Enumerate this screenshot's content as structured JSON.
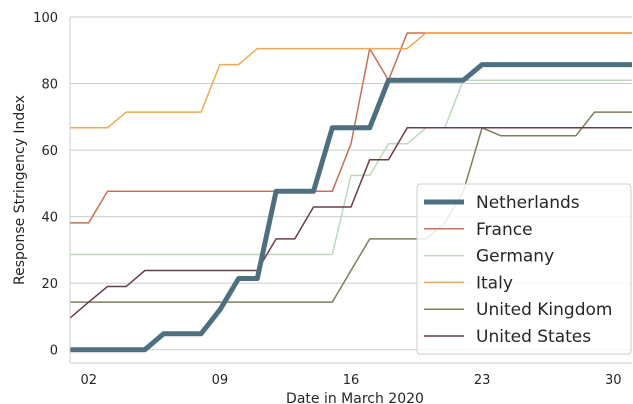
{
  "chart_data": {
    "type": "line",
    "xlabel": "Date in March 2020",
    "ylabel": "Response Stringency Index",
    "xlim": [
      1,
      31
    ],
    "ylim": [
      -4,
      100
    ],
    "xticks": [
      2,
      9,
      16,
      23,
      30
    ],
    "xtick_labels": [
      "02",
      "09",
      "16",
      "23",
      "30"
    ],
    "yticks": [
      0,
      20,
      40,
      60,
      80,
      100
    ],
    "ytick_labels": [
      "0",
      "20",
      "40",
      "60",
      "80",
      "100"
    ],
    "grid": "horizontal",
    "legend_position": "lower-right",
    "x": [
      1,
      2,
      3,
      4,
      5,
      6,
      7,
      8,
      9,
      10,
      11,
      12,
      13,
      14,
      15,
      16,
      17,
      18,
      19,
      20,
      21,
      22,
      23,
      24,
      25,
      26,
      27,
      28,
      29,
      30,
      31
    ],
    "series": [
      {
        "name": "Netherlands",
        "color": "#4e707e",
        "width": 5,
        "values": [
          0,
          0,
          0,
          0,
          0,
          4.8,
          4.8,
          4.8,
          12,
          21.4,
          21.4,
          47.6,
          47.6,
          47.6,
          66.7,
          66.7,
          66.7,
          81,
          81,
          81,
          81,
          81,
          85.7,
          85.7,
          85.7,
          85.7,
          85.7,
          85.7,
          85.7,
          85.7,
          85.7
        ]
      },
      {
        "name": "France",
        "color": "#c87055",
        "width": 1.5,
        "values": [
          38.1,
          38.1,
          47.6,
          47.6,
          47.6,
          47.6,
          47.6,
          47.6,
          47.6,
          47.6,
          47.6,
          47.6,
          47.6,
          47.6,
          47.6,
          61.9,
          90.5,
          81,
          95.2,
          95.2,
          95.2,
          95.2,
          95.2,
          95.2,
          95.2,
          95.2,
          95.2,
          95.2,
          95.2,
          95.2,
          95.2
        ]
      },
      {
        "name": "Germany",
        "color": "#bcd9bb",
        "width": 1.5,
        "values": [
          28.6,
          28.6,
          28.6,
          28.6,
          28.6,
          28.6,
          28.6,
          28.6,
          28.6,
          28.6,
          28.6,
          28.6,
          28.6,
          28.6,
          28.6,
          52.4,
          52.4,
          61.9,
          61.9,
          66.7,
          66.7,
          81,
          81,
          81,
          81,
          81,
          81,
          81,
          81,
          81,
          81
        ]
      },
      {
        "name": "Italy",
        "color": "#f0a951",
        "width": 1.5,
        "values": [
          66.7,
          66.7,
          66.7,
          71.4,
          71.4,
          71.4,
          71.4,
          71.4,
          85.7,
          85.7,
          90.5,
          90.5,
          90.5,
          90.5,
          90.5,
          90.5,
          90.5,
          90.5,
          90.5,
          95.2,
          95.2,
          95.2,
          95.2,
          95.2,
          95.2,
          95.2,
          95.2,
          95.2,
          95.2,
          95.2,
          95.2
        ]
      },
      {
        "name": "United Kingdom",
        "color": "#7c7f5a",
        "width": 1.5,
        "values": [
          14.3,
          14.3,
          14.3,
          14.3,
          14.3,
          14.3,
          14.3,
          14.3,
          14.3,
          14.3,
          14.3,
          14.3,
          14.3,
          14.3,
          14.3,
          23.8,
          33.3,
          33.3,
          33.3,
          33.3,
          38.1,
          47.6,
          66.7,
          64.3,
          64.3,
          64.3,
          64.3,
          64.3,
          71.4,
          71.4,
          71.4
        ]
      },
      {
        "name": "United States",
        "color": "#6b3b4a",
        "width": 1.5,
        "values": [
          9.5,
          14.3,
          19,
          19,
          23.8,
          23.8,
          23.8,
          23.8,
          23.8,
          23.8,
          23.8,
          33.3,
          33.3,
          42.9,
          42.9,
          42.9,
          57.1,
          57.1,
          66.7,
          66.7,
          66.7,
          66.7,
          66.7,
          66.7,
          66.7,
          66.7,
          66.7,
          66.7,
          66.7,
          66.7,
          66.7
        ]
      }
    ]
  }
}
